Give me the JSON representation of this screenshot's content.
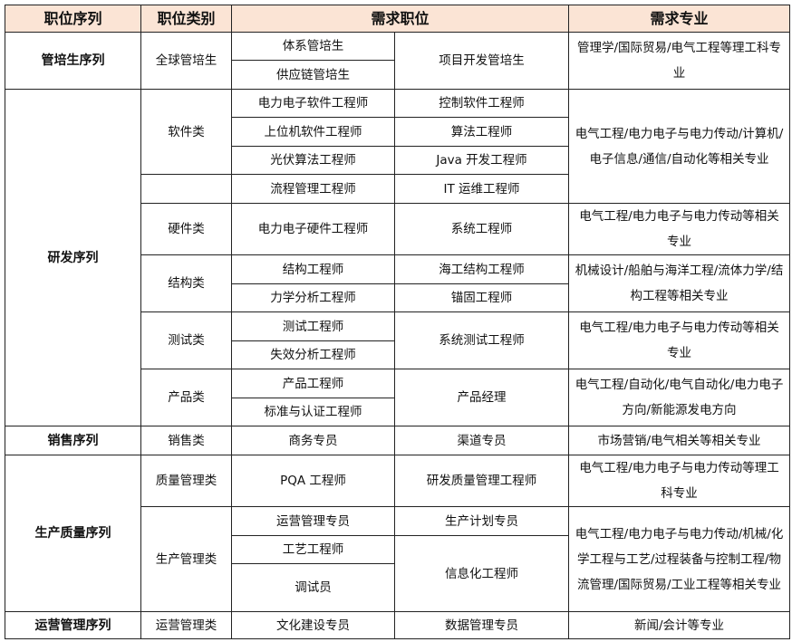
{
  "header": {
    "sequence": "职位序列",
    "category": "职位类别",
    "positions": "需求职位",
    "majors": "需求专业"
  },
  "colors": {
    "header_bg": "#fbe4d5",
    "border": "#222222"
  },
  "groups": {
    "trainee": {
      "sequence": "管培生序列",
      "category": "全球管培生",
      "pos_a": [
        "体系管培生",
        "供应链管培生"
      ],
      "pos_b": "项目开发管培生",
      "major": "管理学/国际贸易/电气工程等理工科专业"
    },
    "rd": {
      "sequence": "研发序列",
      "software": {
        "category": "软件类",
        "rows": [
          [
            "电力电子软件工程师",
            "控制软件工程师"
          ],
          [
            "上位机软件工程师",
            "算法工程师"
          ],
          [
            "光伏算法工程师",
            "Java 开发工程师"
          ],
          [
            "流程管理工程师",
            "IT 运维工程师"
          ]
        ],
        "major": "电气工程/电力电子与电力传动/计算机/电子信息/通信/自动化等相关专业"
      },
      "hardware": {
        "category": "硬件类",
        "pos_a": "电力电子硬件工程师",
        "pos_b": "系统工程师",
        "major": "电气工程/电力电子与电力传动等相关专业"
      },
      "structure": {
        "category": "结构类",
        "rows": [
          [
            "结构工程师",
            "海工结构工程师"
          ],
          [
            "力学分析工程师",
            "锚固工程师"
          ]
        ],
        "major": "机械设计/船舶与海洋工程/流体力学/结构工程等相关专业"
      },
      "testing": {
        "category": "测试类",
        "pos_a": [
          "测试工程师",
          "失效分析工程师"
        ],
        "pos_b": "系统测试工程师",
        "major": "电气工程/电力电子与电力传动等相关专业"
      },
      "product": {
        "category": "产品类",
        "pos_a": [
          "产品工程师",
          "标准与认证工程师"
        ],
        "pos_b": "产品经理",
        "major": "电气工程/自动化/电气自动化/电力电子方向/新能源发电方向"
      }
    },
    "sales": {
      "sequence": "销售序列",
      "category": "销售类",
      "pos_a": "商务专员",
      "pos_b": "渠道专员",
      "major": "市场营销/电气相关等相关专业"
    },
    "production": {
      "sequence": "生产质量序列",
      "quality": {
        "category": "质量管理类",
        "pos_a": "PQA 工程师",
        "pos_b": "研发质量管理工程师",
        "major": "电气工程/电力电子与电力传动等理工科专业"
      },
      "manage": {
        "category": "生产管理类",
        "pos_a": [
          "运营管理专员",
          "工艺工程师",
          "调试员"
        ],
        "pos_b": [
          "生产计划专员",
          "信息化工程师"
        ],
        "major": "电气工程/电力电子与电力传动/机械/化学工程与工艺/过程装备与控制工程/物流管理/国际贸易/工业工程等相关专业"
      }
    },
    "ops": {
      "sequence": "运营管理序列",
      "category": "运营管理类",
      "pos_a": "文化建设专员",
      "pos_b": "数据管理专员",
      "major": "新闻/会计等专业"
    }
  }
}
